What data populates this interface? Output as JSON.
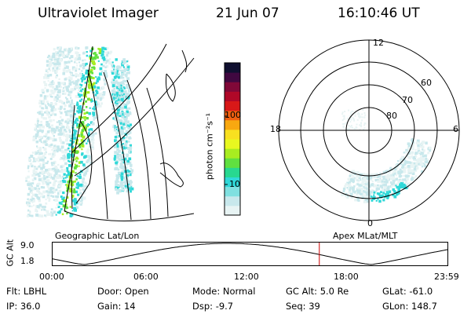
{
  "header": {
    "title": "Ultraviolet Imager",
    "date": "21 Jun 07",
    "time": "16:10:46 UT"
  },
  "colorbar": {
    "label": "photon cm⁻²s⁻¹",
    "ticks": [
      {
        "label": "100",
        "value": 100
      },
      {
        "label": "10",
        "value": 10
      }
    ],
    "scale": "log",
    "colors": [
      "#e8f4f4",
      "#c8e8ec",
      "#80e0e0",
      "#30d8d8",
      "#28d890",
      "#60e040",
      "#a8ec20",
      "#e8f820",
      "#f8e020",
      "#f8a810",
      "#f06010",
      "#d81818",
      "#b00828",
      "#800838",
      "#400840",
      "#101030"
    ]
  },
  "geo_panel": {
    "caption": "Geographic Lat/Lon"
  },
  "polar_panel": {
    "caption": "Apex MLat/MLT",
    "mlt_labels": {
      "top": "12",
      "left": "18",
      "right": "6",
      "bottom": "0"
    },
    "lat_labels": [
      "60",
      "70",
      "80"
    ]
  },
  "altitude_plot": {
    "ylabel": "GC Alt",
    "yticks": [
      "9.0",
      "1.8"
    ],
    "ylim": [
      1.8,
      9.0
    ],
    "xticks": [
      "00:00",
      "06:00",
      "12:00",
      "18:00",
      "23:59"
    ],
    "current_time_hours": 16.18,
    "marker_color": "#cc0000"
  },
  "status": {
    "row1": [
      {
        "key": "Flt:",
        "value": "LBHL"
      },
      {
        "key": "Door:",
        "value": "Open"
      },
      {
        "key": "Mode:",
        "value": "Normal"
      },
      {
        "key": "GC Alt:",
        "value": "5.0 Re"
      },
      {
        "key": "GLat:",
        "value": "-61.0"
      }
    ],
    "row2": [
      {
        "key": "IP:",
        "value": "36.0"
      },
      {
        "key": "Gain:",
        "value": "14"
      },
      {
        "key": "Dsp:",
        "value": "-9.7"
      },
      {
        "key": "Seq:",
        "value": "39"
      },
      {
        "key": "GLon:",
        "value": "148.7"
      }
    ]
  }
}
